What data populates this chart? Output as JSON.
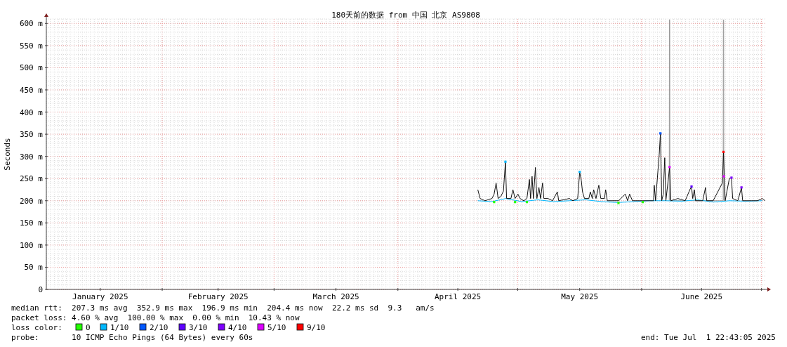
{
  "chart_data": {
    "type": "line",
    "title": "180天前的数据 from 中国 北京 AS9808",
    "ylabel": "Seconds",
    "xlim": [
      "2025-01-03T00:00",
      "2025-07-01T22:43"
    ],
    "ylim": [
      0,
      610
    ],
    "xticks": [
      {
        "value": "2025-02-01",
        "label": null
      },
      {
        "value": "2025-03-01",
        "label": null
      },
      {
        "value": "2025-04-01",
        "label": null
      },
      {
        "value": "2025-05-01",
        "label": null
      },
      {
        "value": "2025-06-01",
        "label": null
      },
      {
        "value": "2025-07-01",
        "label": null
      },
      {
        "value": "2025-01-16T12:00",
        "label": "January 2025"
      },
      {
        "value": "2025-02-15T00:00",
        "label": "February 2025"
      },
      {
        "value": "2025-03-16T12:00",
        "label": "March 2025"
      },
      {
        "value": "2025-04-16T00:00",
        "label": "April 2025"
      },
      {
        "value": "2025-05-16T12:00",
        "label": "May 2025"
      },
      {
        "value": "2025-06-16T00:00",
        "label": "June 2025"
      }
    ],
    "yticks": [
      0,
      {
        "value": 50,
        "label": "50 m"
      },
      {
        "value": 100,
        "label": "100 m"
      },
      {
        "value": 150,
        "label": "150 m"
      },
      {
        "value": 200,
        "label": "200 m"
      },
      {
        "value": 250,
        "label": "250 m"
      },
      {
        "value": 300,
        "label": "300 m"
      },
      {
        "value": 350,
        "label": "350 m"
      },
      {
        "value": 400,
        "label": "400 m"
      },
      {
        "value": 450,
        "label": "450 m"
      },
      {
        "value": 500,
        "label": "500 m"
      },
      {
        "value": 550,
        "label": "550 m"
      },
      {
        "value": 600,
        "label": "600 m"
      }
    ],
    "grid": true,
    "legend": "bottom",
    "series": [
      {
        "color": "#999999",
        "x": [
          "2025-06-07T22:00",
          "2025-06-07T23:00",
          "2025-06-08T01:00",
          "2025-06-08T02:00",
          "2025-06-21T10:00",
          "2025-06-21T11:00",
          "2025-06-21T13:00",
          "2025-06-21T14:00"
        ],
        "values": [
          200,
          608,
          608,
          200,
          200,
          608,
          608,
          200
        ]
      },
      {
        "color": "#00b8ff",
        "x": [
          "2025-04-21T00:00",
          "2025-04-24T13:00",
          "2025-04-28T00:00",
          "2025-05-02T00:00",
          "2025-05-06T00:00",
          "2025-05-10T00:00",
          "2025-05-14T00:00",
          "2025-05-18T00:00",
          "2025-05-22T00:00",
          "2025-05-26T00:00",
          "2025-05-30T00:00",
          "2025-06-03T00:00",
          "2025-06-07T00:00",
          "2025-06-11T00:00",
          "2025-06-15T00:00",
          "2025-06-19T00:00",
          "2025-06-23T00:00",
          "2025-06-27T00:00",
          "2025-07-01T05:00"
        ],
        "values": [
          200,
          198,
          205,
          198,
          202,
          198,
          200,
          202,
          198,
          196,
          198,
          200,
          200,
          199,
          202,
          197,
          200,
          199,
          200
        ]
      },
      {
        "color": "#111111",
        "x": [
          "2025-04-21T00:00",
          "2025-04-21T14:00",
          "2025-04-22T19:00",
          "2025-04-24T13:00",
          "2025-04-25T02:00",
          "2025-04-25T14:00",
          "2025-04-26T02:00",
          "2025-04-26T19:00",
          "2025-04-27T10:00",
          "2025-04-27T22:00",
          "2025-04-28T05:00",
          "2025-04-29T07:00",
          "2025-04-29T19:00",
          "2025-04-30T08:00",
          "2025-05-01T01:00",
          "2025-05-01T14:00",
          "2025-05-02T12:00",
          "2025-05-03T07:00",
          "2025-05-03T22:00",
          "2025-05-04T05:00",
          "2025-05-04T14:00",
          "2025-05-04T22:00",
          "2025-05-05T10:00",
          "2025-05-05T19:00",
          "2025-05-06T07:00",
          "2025-05-06T17:00",
          "2025-05-07T05:00",
          "2025-05-07T13:00",
          "2025-05-08T14:00",
          "2025-05-09T17:00",
          "2025-05-10T22:00",
          "2025-05-11T06:00",
          "2025-05-13T22:00",
          "2025-05-14T19:00",
          "2025-05-16T00:00",
          "2025-05-16T12:00",
          "2025-05-16T22:00",
          "2025-05-17T05:00",
          "2025-05-17T17:00",
          "2025-05-18T19:00",
          "2025-05-19T04:00",
          "2025-05-19T16:00",
          "2025-05-20T00:00",
          "2025-05-20T14:00",
          "2025-05-21T07:00",
          "2025-05-21T19:00",
          "2025-05-22T17:00",
          "2025-05-23T00:00",
          "2025-05-23T10:00",
          "2025-05-24T10:00",
          "2025-05-26T05:00",
          "2025-05-27T22:00",
          "2025-05-28T12:00",
          "2025-05-29T00:00",
          "2025-05-29T17:00",
          "2025-06-01T07:00",
          "2025-06-04T00:00",
          "2025-06-04T04:00",
          "2025-06-04T12:00",
          "2025-06-05T10:00",
          "2025-06-05T17:00",
          "2025-06-06T01:00",
          "2025-06-06T10:00",
          "2025-06-06T19:00",
          "2025-06-07T02:00",
          "2025-06-08T00:00",
          "2025-06-08T08:00",
          "2025-06-10T02:00",
          "2025-06-11T22:00",
          "2025-06-13T02:00",
          "2025-06-13T12:00",
          "2025-06-13T19:00",
          "2025-06-14T05:00",
          "2025-06-14T12:00",
          "2025-06-16T07:00",
          "2025-06-17T00:00",
          "2025-06-17T07:00",
          "2025-06-18T22:00",
          "2025-06-21T05:00",
          "2025-06-21T12:00",
          "2025-06-21T22:00",
          "2025-06-22T23:00",
          "2025-06-23T12:00",
          "2025-06-23T19:00",
          "2025-06-25T02:00",
          "2025-06-26T00:00",
          "2025-06-26T07:00",
          "2025-06-28T14:00",
          "2025-06-30T00:00",
          "2025-07-01T05:00",
          "2025-07-01T22:00"
        ],
        "values": [
          225,
          205,
          200,
          205,
          215,
          240,
          205,
          210,
          222,
          288,
          205,
          205,
          225,
          205,
          215,
          205,
          200,
          205,
          248,
          205,
          255,
          205,
          275,
          205,
          230,
          205,
          240,
          205,
          205,
          200,
          220,
          200,
          205,
          200,
          205,
          265,
          245,
          220,
          205,
          205,
          220,
          205,
          225,
          205,
          235,
          205,
          205,
          225,
          200,
          200,
          200,
          215,
          200,
          215,
          200,
          200,
          200,
          235,
          200,
          305,
          352,
          200,
          215,
          297,
          200,
          275,
          200,
          205,
          200,
          225,
          232,
          205,
          225,
          200,
          200,
          230,
          200,
          200,
          240,
          310,
          200,
          250,
          252,
          205,
          200,
          230,
          200,
          200,
          200,
          205,
          200
        ]
      },
      {
        "type": "scatter",
        "marker": "square",
        "name": "0",
        "color": "#26ff00",
        "x": [
          "2025-04-25T02:00",
          "2025-04-30T08:00",
          "2025-05-03T07:00",
          "2025-05-26T05:00",
          "2025-06-01T07:00"
        ],
        "values": [
          197,
          197,
          197,
          195,
          197
        ]
      },
      {
        "type": "scatter",
        "marker": "square",
        "name": "1/10",
        "color": "#00b8ff",
        "x": [
          "2025-04-27T22:00",
          "2025-05-16T12:00"
        ],
        "values": [
          288,
          265
        ]
      },
      {
        "type": "scatter",
        "marker": "square",
        "name": "2/10",
        "color": "#0059ff",
        "x": [
          "2025-06-05T17:00"
        ],
        "values": [
          352
        ]
      },
      {
        "type": "scatter",
        "marker": "square",
        "name": "3/10",
        "color": "#5e00ff",
        "x": [
          "2025-06-13T12:00"
        ],
        "values": [
          232
        ]
      },
      {
        "type": "scatter",
        "marker": "square",
        "name": "4/10",
        "color": "#7e00ff",
        "x": [
          "2025-06-26T00:00",
          "2025-06-23T12:00"
        ],
        "values": [
          230,
          252
        ]
      },
      {
        "type": "scatter",
        "marker": "square",
        "name": "5/10",
        "color": "#dd00ff",
        "x": [
          "2025-06-08T00:00",
          "2025-06-21T14:00"
        ],
        "values": [
          276,
          255
        ]
      },
      {
        "type": "scatter",
        "marker": "square",
        "name": "9/10",
        "color": "#ff0000",
        "x": [
          "2025-06-21T12:00"
        ],
        "values": [
          310
        ]
      }
    ],
    "annotations": [
      "median rtt:  207.3 ms avg  352.9 ms max  196.9 ms min  204.4 ms now  22.2 ms sd  9.3   am/s",
      "packet loss: 4.60 % avg  100.00 % max  0.00 % min  10.43 % now",
      "loss color:",
      "probe:       10 ICMP Echo Pings (64 Bytes) every 60s",
      "end: Tue Jul  1 22:43:05 2025"
    ]
  }
}
